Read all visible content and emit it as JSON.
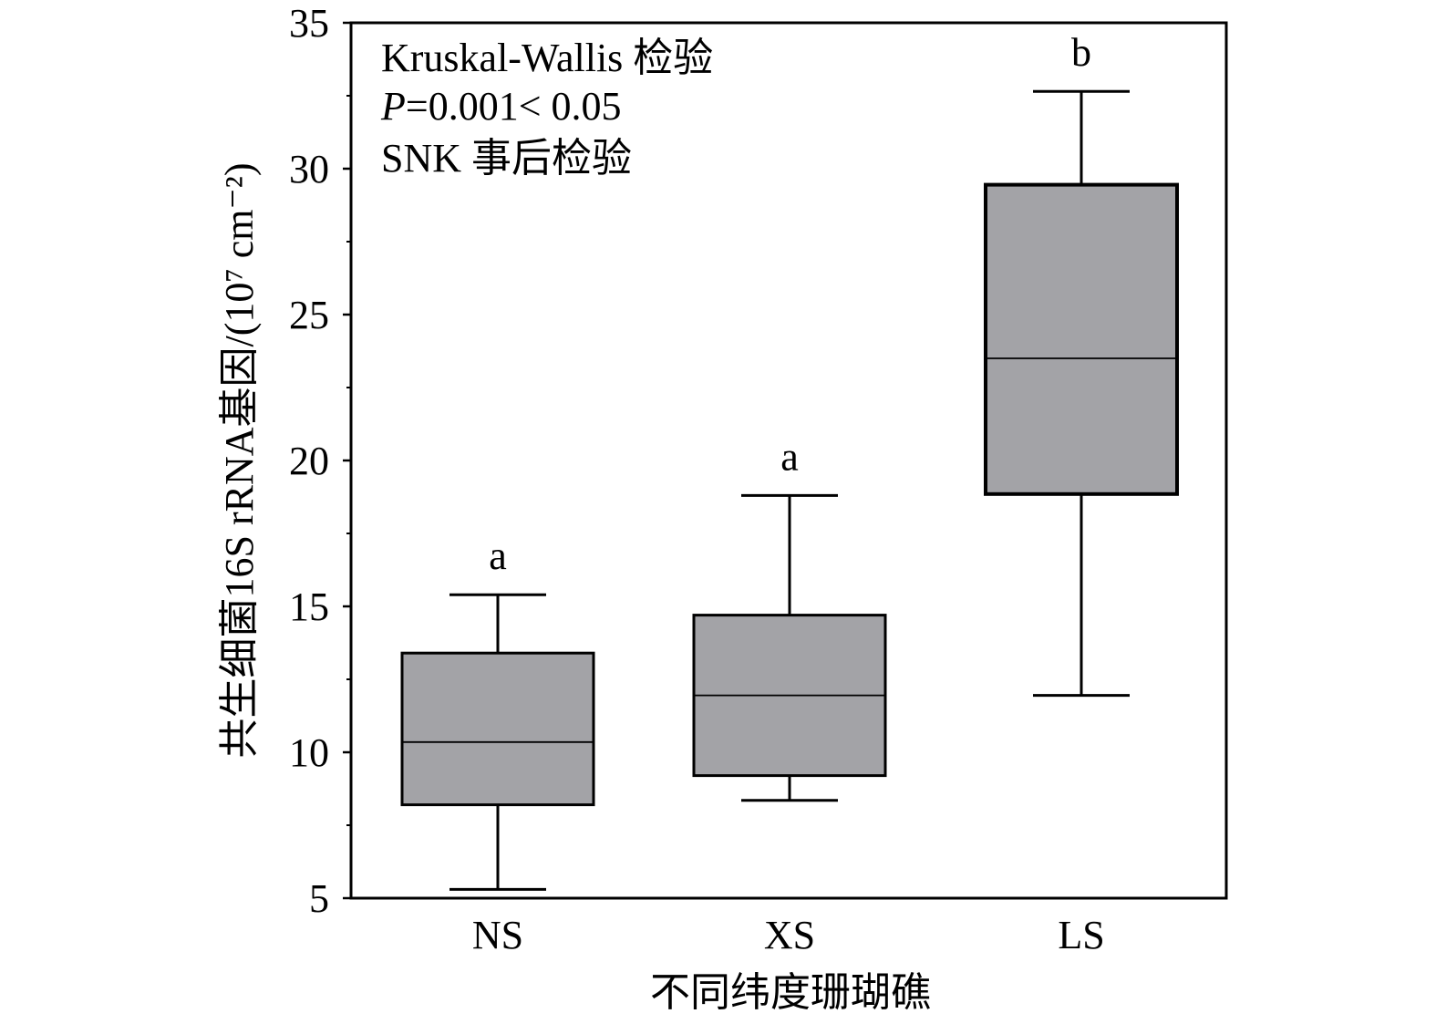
{
  "chart_data": {
    "type": "box",
    "categories": [
      "NS",
      "XS",
      "LS"
    ],
    "boxes": [
      {
        "category": "NS",
        "whisker_low": 5.3,
        "q1": 8.2,
        "median": 10.35,
        "q3": 13.4,
        "whisker_high": 15.4,
        "significance": "a"
      },
      {
        "category": "XS",
        "whisker_low": 8.35,
        "q1": 9.2,
        "median": 11.95,
        "q3": 14.7,
        "whisker_high": 18.8,
        "significance": "a"
      },
      {
        "category": "LS",
        "whisker_low": 11.95,
        "q1": 18.85,
        "median": 23.5,
        "q3": 29.45,
        "whisker_high": 32.65,
        "significance": "b"
      }
    ],
    "xlabel": "不同纬度珊瑚礁",
    "ylabel": "共生细菌16S rRNA基因/(10⁷ cm⁻²)",
    "ylim": [
      5,
      35
    ],
    "yticks": [
      "5",
      "10",
      "15",
      "20",
      "25",
      "30",
      "35"
    ],
    "grid": false,
    "legend": "none",
    "annotations": [
      "Kruskal-Wallis 检验",
      "P=0.001< 0.05",
      "SNK 事后检验"
    ],
    "colors": {
      "box_fill": "#a3a3a7",
      "stroke": "#000000"
    }
  }
}
